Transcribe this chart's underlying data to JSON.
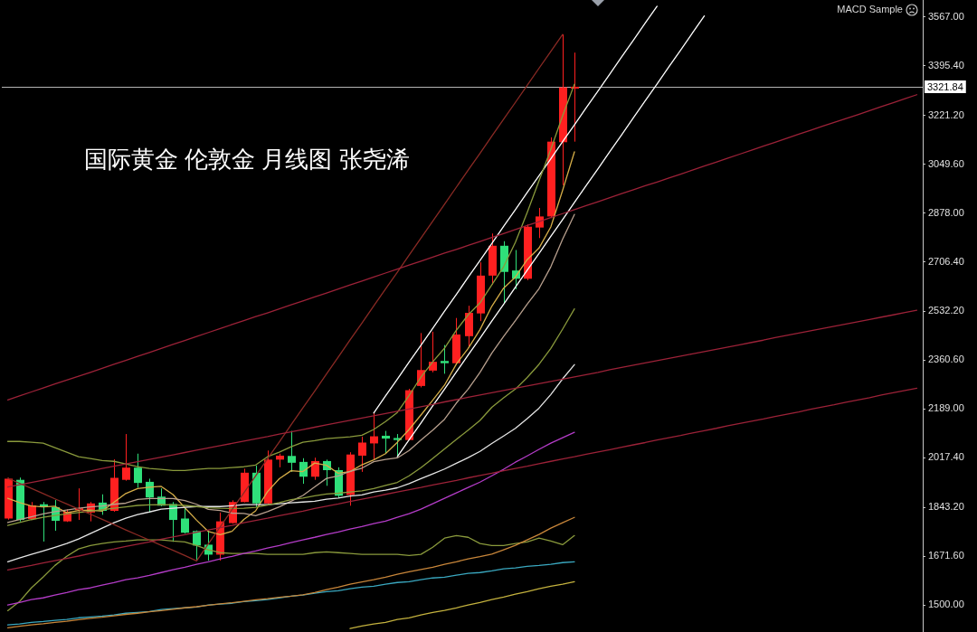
{
  "chart_data": {
    "type": "candlestick",
    "title": "国际黄金 伦敦金 月线图 张尧浠",
    "annotations": [
      "MACD Sample"
    ],
    "tick_labels": "y",
    "categories": [
      null,
      null,
      null,
      null,
      null,
      null,
      null,
      null,
      null,
      null,
      null,
      null,
      null,
      null,
      null,
      null,
      null,
      null,
      null,
      null,
      null,
      null,
      null,
      null,
      null,
      null,
      null,
      null,
      null,
      null,
      null,
      null,
      null,
      null,
      null,
      null,
      null,
      null,
      null,
      null,
      null,
      null,
      null,
      null,
      null,
      null,
      null,
      null,
      null,
      null,
      null,
      null,
      null,
      null,
      null,
      null,
      null,
      null,
      null,
      null,
      null,
      null,
      null,
      null,
      null,
      null,
      null,
      null,
      null,
      null,
      null,
      null,
      null,
      null,
      null,
      null,
      null,
      null
    ],
    "ohlc": [
      [
        1804,
        1947,
        1800,
        1944
      ],
      [
        1940,
        1948,
        1794,
        1799
      ],
      [
        1802,
        1862,
        1799,
        1850
      ],
      [
        1854,
        1862,
        1723,
        1847
      ],
      [
        1844,
        1869,
        1761,
        1796
      ],
      [
        1794,
        1836,
        1792,
        1828
      ],
      [
        1834,
        1910,
        1799,
        1840
      ],
      [
        1825,
        1862,
        1794,
        1857
      ],
      [
        1860,
        1889,
        1817,
        1831
      ],
      [
        1831,
        2012,
        1828,
        1947
      ],
      [
        1940,
        2101,
        1937,
        1983
      ],
      [
        1983,
        2032,
        1912,
        1929
      ],
      [
        1933,
        1944,
        1825,
        1878
      ],
      [
        1881,
        1910,
        1847,
        1849
      ],
      [
        1855,
        1862,
        1722,
        1799
      ],
      [
        1804,
        1844,
        1751,
        1754
      ],
      [
        1760,
        1762,
        1656,
        1709
      ],
      [
        1712,
        1762,
        1656,
        1677
      ],
      [
        1677,
        1825,
        1656,
        1794
      ],
      [
        1788,
        1868,
        1786,
        1862
      ],
      [
        1862,
        1979,
        1861,
        1965
      ],
      [
        1965,
        1990,
        1844,
        1857
      ],
      [
        1857,
        2043,
        1855,
        2011
      ],
      [
        2011,
        2032,
        1984,
        2025
      ],
      [
        2024,
        2112,
        1968,
        2000
      ],
      [
        2003,
        2016,
        1926,
        1951
      ],
      [
        1951,
        2018,
        1940,
        2006
      ],
      [
        2006,
        2011,
        1919,
        1974
      ],
      [
        1974,
        1984,
        1878,
        1884
      ],
      [
        1887,
        2037,
        1849,
        2029
      ],
      [
        2025,
        2092,
        1968,
        2071
      ],
      [
        2068,
        2175,
        2011,
        2093
      ],
      [
        2095,
        2112,
        2031,
        2085
      ],
      [
        2087,
        2101,
        2022,
        2080
      ],
      [
        2080,
        2260,
        2079,
        2255
      ],
      [
        2270,
        2456,
        2265,
        2326
      ],
      [
        2324,
        2461,
        2318,
        2355
      ],
      [
        2358,
        2414,
        2313,
        2350
      ],
      [
        2350,
        2509,
        2345,
        2451
      ],
      [
        2445,
        2552,
        2408,
        2527
      ],
      [
        2525,
        2705,
        2498,
        2658
      ],
      [
        2658,
        2806,
        2626,
        2763
      ],
      [
        2763,
        2779,
        2562,
        2671
      ],
      [
        2676,
        2748,
        2610,
        2647
      ],
      [
        2647,
        2838,
        2642,
        2830
      ],
      [
        2827,
        2896,
        2790,
        2866
      ],
      [
        2866,
        3144,
        2860,
        3129
      ],
      [
        3127,
        3506,
        2976,
        3320
      ],
      [
        3318,
        3442,
        3129,
        3322
      ],
      null,
      null,
      null,
      null,
      null,
      null,
      null,
      null,
      null,
      null,
      null,
      null,
      null,
      null,
      null,
      null,
      null,
      null,
      null,
      null,
      null,
      null,
      null,
      null,
      null,
      null,
      null,
      null,
      null
    ],
    "colors": [
      "#ff2020",
      "#2fe07a",
      "#ff2020",
      "#2fe07a",
      "#2fe07a",
      "#ff2020",
      "#ff2020",
      "#ff2020",
      "#2fe07a",
      "#ff2020",
      "#ff2020",
      "#2fe07a",
      "#2fe07a",
      "#2fe07a",
      "#2fe07a",
      "#2fe07a",
      "#2fe07a",
      "#2fe07a",
      "#ff2020",
      "#ff2020",
      "#ff2020",
      "#2fe07a",
      "#ff2020",
      "#ff2020",
      "#2fe07a",
      "#2fe07a",
      "#ff2020",
      "#2fe07a",
      "#2fe07a",
      "#ff2020",
      "#ff2020",
      "#ff2020",
      "#2fe07a",
      "#2fe07a",
      "#ff2020",
      "#ff2020",
      "#ff2020",
      "#2fe07a",
      "#ff2020",
      "#ff2020",
      "#ff2020",
      "#ff2020",
      "#2fe07a",
      "#2fe07a",
      "#ff2020",
      "#ff2020",
      "#ff2020",
      "#ff2020",
      "#ff2020",
      null,
      null,
      null,
      null,
      null,
      null,
      null,
      null,
      null,
      null,
      null,
      null,
      null,
      null,
      null,
      null,
      null,
      null,
      null,
      null,
      null,
      null,
      null,
      null,
      null,
      null,
      null,
      null,
      null
    ],
    "ylim": [
      1405,
      3627
    ],
    "yticks": [
      {
        "value": 3567,
        "label": "3567.00"
      },
      {
        "value": 3395.4,
        "label": "3395.40"
      },
      {
        "value": 3221.2,
        "label": "3221.20"
      },
      {
        "value": 3049.6,
        "label": "3049.60"
      },
      {
        "value": 2878,
        "label": "2878.00"
      },
      {
        "value": 2706.4,
        "label": "2706.40"
      },
      {
        "value": 2532.2,
        "label": "2532.20"
      },
      {
        "value": 2360.6,
        "label": "2360.60"
      },
      {
        "value": 2189,
        "label": "2189.00"
      },
      {
        "value": 2017.4,
        "label": "2017.40"
      },
      {
        "value": 1843.2,
        "label": "1843.20"
      },
      {
        "value": 1671.6,
        "label": "1671.60"
      },
      {
        "value": 1500,
        "label": "1500.00"
      }
    ],
    "ref_lines": [
      {
        "axis": "y",
        "value": 3321.84,
        "label": "3321.84",
        "color": "#b4b4b4"
      }
    ],
    "series": [
      {
        "type": "line",
        "color": "#9c2238",
        "values": [
          2221,
          2235,
          2249,
          2263,
          2277,
          2291,
          2304,
          2318,
          2332,
          2346,
          2360,
          2374,
          2388,
          2402,
          2416,
          2430,
          2444,
          2458,
          2472,
          2486,
          2500,
          2514,
          2527,
          2541,
          2555,
          2569,
          2583,
          2597,
          2611,
          2625,
          2639,
          2653,
          2667,
          2681,
          2695,
          2709,
          2723,
          2737,
          2750,
          2764,
          2778,
          2792,
          2806,
          2820,
          2834,
          2848,
          2862,
          2876,
          2890,
          2904,
          2918,
          2932,
          2946,
          2960,
          2974,
          2987,
          3001,
          3015,
          3029,
          3043,
          3057,
          3071,
          3085,
          3099,
          3113,
          3127,
          3141,
          3155,
          3169,
          3183,
          3197,
          3210,
          3224,
          3238,
          3252,
          3266,
          3280,
          3294
        ]
      },
      {
        "type": "line",
        "color": "#9c2238",
        "values": [
          1915,
          1923,
          1931,
          1939,
          1947,
          1955,
          1963,
          1971,
          1980,
          1988,
          1996,
          2004,
          2012,
          2020,
          2028,
          2036,
          2044,
          2052,
          2060,
          2068,
          2076,
          2084,
          2092,
          2101,
          2109,
          2117,
          2125,
          2133,
          2141,
          2149,
          2157,
          2165,
          2173,
          2181,
          2189,
          2197,
          2205,
          2214,
          2222,
          2230,
          2238,
          2246,
          2254,
          2262,
          2270,
          2278,
          2286,
          2294,
          2302,
          2310,
          2318,
          2327,
          2335,
          2343,
          2351,
          2359,
          2367,
          2375,
          2383,
          2391,
          2399,
          2407,
          2415,
          2423,
          2431,
          2440,
          2448,
          2456,
          2464,
          2472,
          2480,
          2488,
          2496,
          2504,
          2512,
          2520,
          2528,
          2536
        ]
      },
      {
        "type": "line",
        "color": "#9c2238",
        "values": [
          1623,
          1631,
          1639,
          1648,
          1656,
          1664,
          1672,
          1681,
          1689,
          1697,
          1706,
          1714,
          1722,
          1731,
          1739,
          1747,
          1756,
          1764,
          1772,
          1780,
          1789,
          1797,
          1805,
          1814,
          1822,
          1830,
          1839,
          1847,
          1855,
          1864,
          1872,
          1880,
          1889,
          1897,
          1905,
          1913,
          1922,
          1930,
          1938,
          1947,
          1955,
          1963,
          1972,
          1980,
          1988,
          1997,
          2005,
          2013,
          2021,
          2030,
          2038,
          2046,
          2055,
          2063,
          2071,
          2080,
          2088,
          2096,
          2105,
          2113,
          2121,
          2130,
          2138,
          2146,
          2154,
          2163,
          2171,
          2179,
          2188,
          2196,
          2204,
          2213,
          2221,
          2229,
          2238,
          2246,
          2254,
          2262
        ]
      },
      {
        "type": "line",
        "color": "#8a2a24",
        "values": [
          1946,
          1928,
          1910,
          1892,
          1873,
          1855,
          1837,
          1819,
          1801,
          1783,
          1764,
          1746,
          1728,
          1710,
          1692,
          1674,
          1655,
          1715,
          1775,
          1835,
          1894,
          1954,
          2014,
          2073,
          2133,
          2193,
          2252,
          2312,
          2372,
          2432,
          2491,
          2551,
          2611,
          2670,
          2730,
          2790,
          2849,
          2909,
          2969,
          3029,
          3088,
          3148,
          3208,
          3267,
          3327,
          3387,
          3446,
          3506,
          null,
          null,
          null,
          null,
          null,
          null,
          null,
          null,
          null,
          null,
          null,
          null,
          null,
          null,
          null,
          null,
          null,
          null,
          null,
          null,
          null,
          null,
          null,
          null,
          null,
          null,
          null,
          null,
          null,
          null
        ]
      },
      {
        "type": "line",
        "color": "#c4b23e",
        "values": [
          null,
          null,
          null,
          null,
          null,
          null,
          null,
          null,
          null,
          null,
          null,
          null,
          null,
          null,
          null,
          null,
          null,
          null,
          null,
          null,
          null,
          null,
          null,
          null,
          null,
          null,
          null,
          null,
          null,
          1417,
          1426,
          1433,
          1439,
          1449,
          1455,
          1465,
          1474,
          1481,
          1490,
          1500,
          1509,
          1519,
          1528,
          1538,
          1547,
          1557,
          1566,
          1573,
          1582,
          null,
          null,
          null,
          null,
          null,
          null,
          null,
          null,
          null,
          null,
          null,
          null,
          null,
          null,
          null,
          null,
          null,
          null,
          null,
          null,
          null,
          null,
          null,
          null,
          null,
          null,
          null,
          null,
          null
        ]
      },
      {
        "type": "line",
        "color": "#c8863a",
        "values": [
          1420,
          1425,
          1430,
          1434,
          1439,
          1443,
          1448,
          1453,
          1457,
          1462,
          1467,
          1471,
          1476,
          1480,
          1485,
          1490,
          1494,
          1499,
          1504,
          1508,
          1513,
          1518,
          1522,
          1527,
          1531,
          1536,
          1544,
          1554,
          1563,
          1573,
          1581,
          1589,
          1598,
          1608,
          1617,
          1625,
          1633,
          1643,
          1652,
          1662,
          1670,
          1679,
          1694,
          1710,
          1729,
          1748,
          1770,
          1789,
          1808,
          null,
          null,
          null,
          null,
          null,
          null,
          null,
          null,
          null,
          null,
          null,
          null,
          null,
          null,
          null,
          null,
          null,
          null,
          null,
          null,
          null,
          null,
          null,
          null,
          null,
          null,
          null,
          null,
          null
        ]
      },
      {
        "type": "line",
        "color": "#3aa8c0",
        "values": [
          1430,
          1433,
          1439,
          1442,
          1446,
          1449,
          1455,
          1458,
          1461,
          1465,
          1471,
          1474,
          1477,
          1484,
          1487,
          1490,
          1493,
          1500,
          1503,
          1506,
          1512,
          1515,
          1519,
          1525,
          1531,
          1535,
          1541,
          1547,
          1550,
          1557,
          1563,
          1566,
          1573,
          1579,
          1582,
          1589,
          1595,
          1598,
          1605,
          1611,
          1614,
          1620,
          1627,
          1630,
          1636,
          1639,
          1643,
          1649,
          1652,
          null,
          null,
          null,
          null,
          null,
          null,
          null,
          null,
          null,
          null,
          null,
          null,
          null,
          null,
          null,
          null,
          null,
          null,
          null,
          null,
          null,
          null,
          null,
          null,
          null,
          null,
          null,
          null,
          null
        ]
      },
      {
        "type": "line",
        "color": "#b43cc8",
        "values": [
          1500,
          1509,
          1519,
          1525,
          1535,
          1544,
          1554,
          1560,
          1570,
          1579,
          1589,
          1595,
          1604,
          1614,
          1624,
          1633,
          1643,
          1652,
          1662,
          1671,
          1681,
          1690,
          1700,
          1709,
          1719,
          1729,
          1738,
          1748,
          1757,
          1767,
          1776,
          1786,
          1795,
          1808,
          1821,
          1837,
          1856,
          1875,
          1894,
          1913,
          1932,
          1954,
          1977,
          2002,
          2024,
          2047,
          2069,
          2088,
          2107,
          null,
          null,
          null,
          null,
          null,
          null,
          null,
          null,
          null,
          null,
          null,
          null,
          null,
          null,
          null,
          null,
          null,
          null,
          null,
          null,
          null,
          null,
          null,
          null,
          null,
          null,
          null,
          null,
          null
        ]
      },
      {
        "type": "line",
        "color": "#8a9a3c",
        "values": [
          1480,
          1512,
          1560,
          1598,
          1639,
          1671,
          1697,
          1709,
          1716,
          1722,
          1725,
          1729,
          1729,
          1729,
          1725,
          1722,
          1709,
          1694,
          1684,
          1681,
          1681,
          1681,
          1678,
          1678,
          1678,
          1678,
          1684,
          1687,
          1684,
          1681,
          1678,
          1678,
          1678,
          1678,
          1674,
          1678,
          1703,
          1735,
          1744,
          1738,
          1716,
          1709,
          1709,
          1716,
          1722,
          1735,
          1725,
          1712,
          1744,
          null,
          null,
          null,
          null,
          null,
          null,
          null,
          null,
          null,
          null,
          null,
          null,
          null,
          null,
          null,
          null,
          null,
          null,
          null,
          null,
          null,
          null,
          null,
          null,
          null,
          null,
          null,
          null,
          null
        ]
      },
      {
        "type": "line",
        "color": "#8a9a3c",
        "values": [
          1780,
          1790,
          1800,
          1808,
          1815,
          1820,
          1825,
          1830,
          1835,
          1840,
          1845,
          1850,
          1852,
          1853,
          1852,
          1850,
          1846,
          1842,
          1840,
          1839,
          1840,
          1843,
          1851,
          1860,
          1870,
          1876,
          1884,
          1890,
          1893,
          1897,
          1901,
          1909,
          1920,
          1931,
          1954,
          1983,
          2015,
          2049,
          2082,
          2115,
          2149,
          2195,
          2228,
          2259,
          2300,
          2346,
          2402,
          2470,
          2541,
          null,
          null,
          null,
          null,
          null,
          null,
          null,
          null,
          null,
          null,
          null,
          null,
          null,
          null,
          null,
          null,
          null,
          null,
          null,
          null,
          null,
          null,
          null,
          null,
          null,
          null,
          null,
          null,
          null
        ]
      },
      {
        "type": "line",
        "color": "#8a9a3c",
        "values": [
          2075,
          2075,
          2072,
          2069,
          2053,
          2037,
          2021,
          2015,
          2008,
          2005,
          1996,
          1986,
          1980,
          1977,
          1973,
          1973,
          1977,
          1980,
          1980,
          1983,
          1986,
          1992,
          2021,
          2037,
          2056,
          2072,
          2078,
          2085,
          2088,
          2091,
          2097,
          2117,
          2145,
          2177,
          2237,
          2301,
          2355,
          2403,
          2466,
          2520,
          2562,
          2625,
          2689,
          2775,
          2880,
          2991,
          3102,
          3220,
          3331,
          null,
          null,
          null,
          null,
          null,
          null,
          null,
          null,
          null,
          null,
          null,
          null,
          null,
          null,
          null,
          null,
          null,
          null,
          null,
          null,
          null,
          null,
          null,
          null,
          null,
          null,
          null,
          null,
          null
        ]
      },
      {
        "type": "line",
        "color": "#e6e6e6",
        "values": [
          1652,
          1665,
          1678,
          1690,
          1703,
          1716,
          1732,
          1751,
          1770,
          1789,
          1805,
          1818,
          1827,
          1837,
          1840,
          1843,
          1846,
          1846,
          1846,
          1849,
          1853,
          1853,
          1853,
          1856,
          1859,
          1862,
          1865,
          1872,
          1876,
          1883,
          1887,
          1897,
          1904,
          1912,
          1927,
          1944,
          1961,
          1978,
          1998,
          2018,
          2040,
          2068,
          2094,
          2121,
          2155,
          2192,
          2240,
          2295,
          2345,
          null,
          null,
          null,
          null,
          null,
          null,
          null,
          null,
          null,
          null,
          null,
          null,
          null,
          null,
          null,
          null,
          null,
          null,
          null,
          null,
          null,
          null,
          null,
          null,
          null,
          null,
          null,
          null,
          null
        ]
      },
      {
        "type": "line",
        "color": "#b8a08e",
        "values": [
          1790,
          1800,
          1810,
          1820,
          1828,
          1834,
          1840,
          1845,
          1848,
          1854,
          1858,
          1871,
          1874,
          1874,
          1874,
          1867,
          1854,
          1836,
          1832,
          1823,
          1822,
          1814,
          1828,
          1845,
          1865,
          1885,
          1915,
          1945,
          1954,
          1970,
          1981,
          2004,
          2012,
          2017,
          2043,
          2080,
          2115,
          2153,
          2210,
          2259,
          2318,
          2385,
          2444,
          2500,
          2558,
          2612,
          2689,
          2786,
          2873,
          null,
          null,
          null,
          null,
          null,
          null,
          null,
          null,
          null,
          null,
          null,
          null,
          null,
          null,
          null,
          null,
          null,
          null,
          null,
          null,
          null,
          null,
          null,
          null,
          null,
          null,
          null,
          null,
          null
        ]
      },
      {
        "type": "line",
        "color": "#d6ae48",
        "values": [
          1875,
          1860,
          1848,
          1845,
          1847,
          1824,
          1832,
          1834,
          1830,
          1861,
          1892,
          1909,
          1914,
          1917,
          1888,
          1842,
          1798,
          1758,
          1747,
          1759,
          1801,
          1831,
          1898,
          1944,
          1972,
          1969,
          1999,
          1991,
          1963,
          1969,
          1993,
          2010,
          2032,
          2072,
          2117,
          2168,
          2220,
          2273,
          2347,
          2402,
          2468,
          2550,
          2614,
          2653,
          2714,
          2755,
          2829,
          2958,
          3093,
          null,
          null,
          null,
          null,
          null,
          null,
          null,
          null,
          null,
          null,
          null,
          null,
          null,
          null,
          null,
          null,
          null,
          null,
          null,
          null,
          null,
          null,
          null,
          null,
          null,
          null,
          null,
          null,
          null
        ]
      },
      {
        "type": "line",
        "color": "#ffffff",
        "values": [
          null,
          null,
          null,
          null,
          null,
          null,
          null,
          null,
          null,
          null,
          null,
          null,
          null,
          null,
          null,
          null,
          null,
          null,
          null,
          null,
          null,
          null,
          null,
          null,
          null,
          null,
          null,
          null,
          null,
          null,
          null,
          2175,
          2235,
          2294,
          2354,
          2413,
          2473,
          2533,
          2592,
          2652,
          2711,
          2771,
          2831,
          2890,
          2950,
          3009,
          3069,
          3129,
          3188,
          3248,
          3307,
          3367,
          3427,
          3486,
          3546,
          3605,
          null,
          null,
          null,
          null,
          null,
          null,
          null,
          null,
          null,
          null,
          null,
          null,
          null,
          null,
          null,
          null,
          null,
          null,
          null,
          null,
          null,
          null
        ]
      },
      {
        "type": "line",
        "color": "#ffffff",
        "values": [
          null,
          null,
          null,
          null,
          null,
          null,
          null,
          null,
          null,
          null,
          null,
          null,
          null,
          null,
          null,
          null,
          null,
          null,
          null,
          null,
          null,
          null,
          null,
          null,
          null,
          null,
          null,
          null,
          null,
          null,
          null,
          null,
          null,
          2021,
          2081,
          2140,
          2200,
          2259,
          2319,
          2379,
          2438,
          2498,
          2557,
          2617,
          2677,
          2736,
          2796,
          2855,
          2915,
          2975,
          3034,
          3094,
          3153,
          3213,
          3273,
          3332,
          3392,
          3451,
          3511,
          3571,
          null,
          null,
          null,
          null,
          null,
          null,
          null,
          null,
          null,
          null,
          null,
          null,
          null,
          null,
          null,
          null,
          null,
          null
        ]
      }
    ]
  }
}
